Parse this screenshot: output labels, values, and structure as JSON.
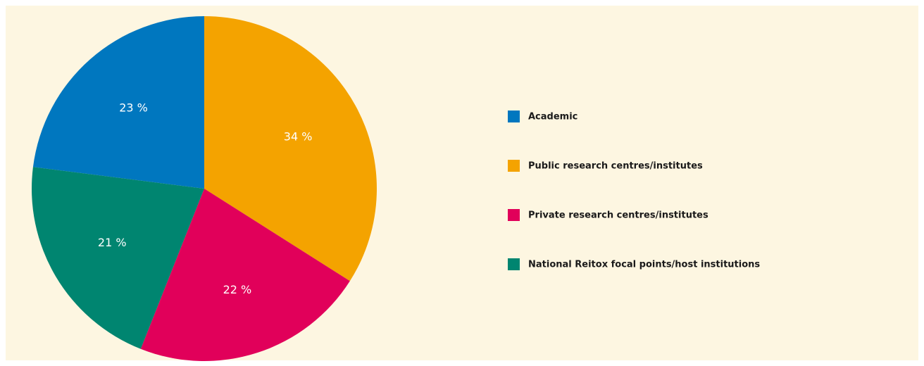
{
  "chart_data": {
    "type": "pie",
    "categories": [
      "Academic",
      "Public research centres/institutes",
      "Private research centres/institutes",
      "National Reitox focal points/host institutions"
    ],
    "values": [
      23,
      34,
      22,
      21
    ],
    "value_labels": [
      "23 %",
      "34 %",
      "22 %",
      "21 %"
    ],
    "colors": [
      "#0077bf",
      "#f4a300",
      "#e1005a",
      "#008570"
    ],
    "legend": "right"
  }
}
